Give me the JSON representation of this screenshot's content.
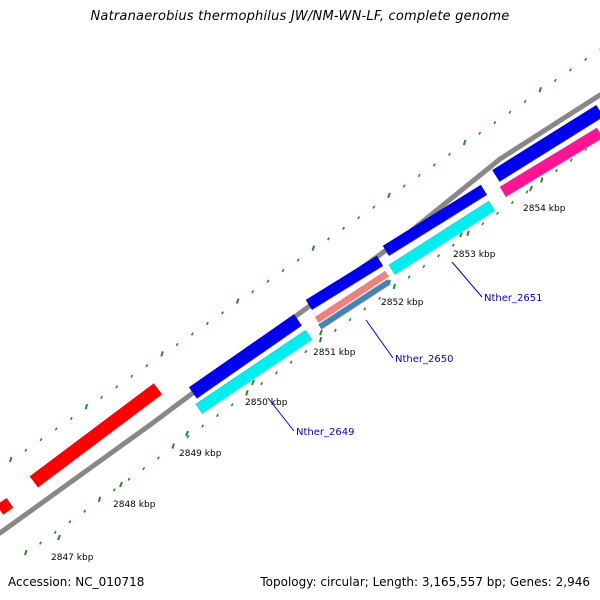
{
  "title": "Natranaerobius thermophilus JW/NM-WN-LF, complete genome",
  "footer": {
    "accession": "Accession: NC_010718",
    "summary": "Topology: circular; Length: 3,165,557 bp; Genes: 2,946"
  },
  "scale_ticks": [
    {
      "label": "2847 kbp",
      "kbp": 2847
    },
    {
      "label": "2848 kbp",
      "kbp": 2848
    },
    {
      "label": "2849 kbp",
      "kbp": 2849
    },
    {
      "label": "2850 kbp",
      "kbp": 2850
    },
    {
      "label": "2851 kbp",
      "kbp": 2851
    },
    {
      "label": "2852 kbp",
      "kbp": 2852
    },
    {
      "label": "2853 kbp",
      "kbp": 2853
    },
    {
      "label": "2854 kbp",
      "kbp": 2854
    }
  ],
  "gene_labels": [
    {
      "name": "Nther_2649"
    },
    {
      "name": "Nther_2650"
    },
    {
      "name": "Nther_2651"
    }
  ],
  "feature_colors": {
    "backbone": "#888888",
    "outer_feature": "#0000ee",
    "inner_feature": "#00eeee",
    "red_feature": "#ff0000",
    "pink_feature": "#ff1493",
    "salmon_feature": "#f08080",
    "steel_feature": "#4682b4",
    "tick_marks": "#228b22",
    "label_line": "#0000ff"
  }
}
